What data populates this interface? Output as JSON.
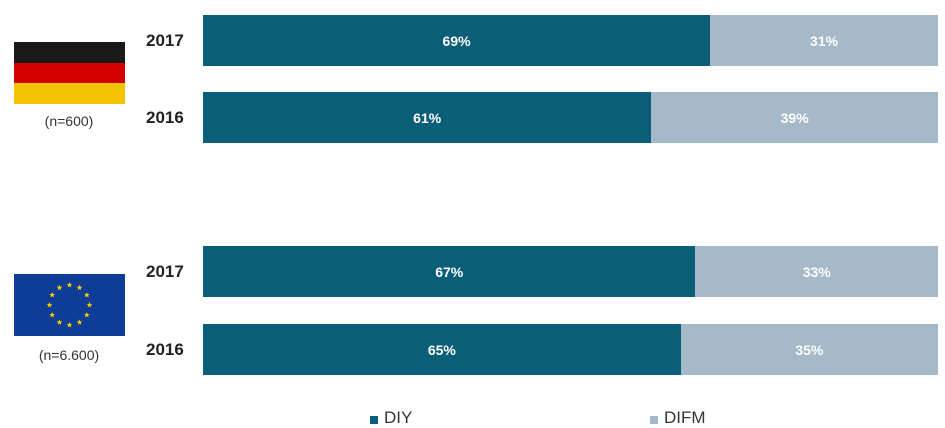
{
  "chart_data": {
    "type": "bar",
    "orientation": "horizontal",
    "stacked": true,
    "percent": true,
    "groups": [
      {
        "flag": "germany-flag",
        "n_label": "(n=600)",
        "rows": [
          {
            "year": "2017",
            "values": [
              69,
              31
            ],
            "labels": [
              "69%",
              "31%"
            ]
          },
          {
            "year": "2016",
            "values": [
              61,
              39
            ],
            "labels": [
              "61%",
              "39%"
            ]
          }
        ]
      },
      {
        "flag": "eu-flag",
        "n_label": "(n=6.600)",
        "rows": [
          {
            "year": "2017",
            "values": [
              67,
              33
            ],
            "labels": [
              "67%",
              "33%"
            ]
          },
          {
            "year": "2016",
            "values": [
              65,
              35
            ],
            "labels": [
              "65%",
              "35%"
            ]
          }
        ]
      }
    ],
    "series": [
      {
        "name": "DIY",
        "color": "#0b5e78"
      },
      {
        "name": "DIFM",
        "color": "#a6b9c8"
      }
    ],
    "xlim": [
      0,
      100
    ],
    "grid": false,
    "legend": "bottom"
  }
}
